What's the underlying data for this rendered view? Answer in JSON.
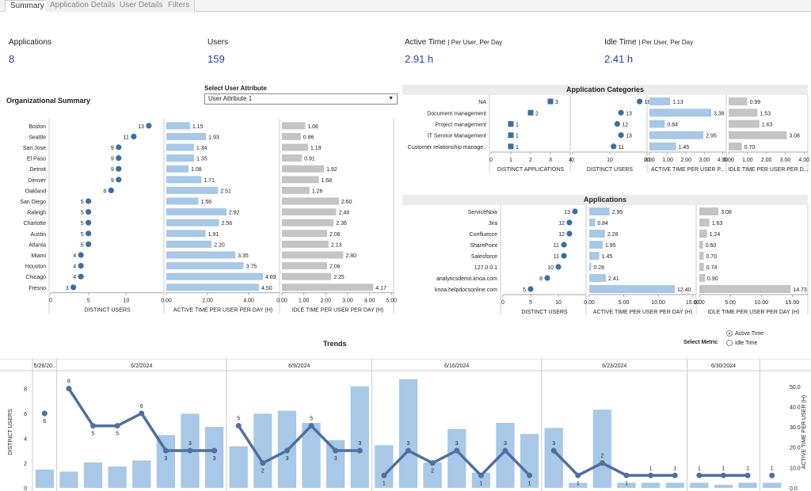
{
  "tabs": [
    {
      "label": "Summary",
      "active": true
    },
    {
      "label": "Application Details",
      "active": false
    },
    {
      "label": "User Details",
      "active": false
    },
    {
      "label": "Filters",
      "active": false
    }
  ],
  "kpis": {
    "applications": {
      "label": "Applications",
      "value": "8"
    },
    "users": {
      "label": "Users",
      "value": "159"
    },
    "active_time": {
      "label": "Active Time",
      "sub": "| Per User, Per Day",
      "value": "2.91 h"
    },
    "idle_time": {
      "label": "Idle Time",
      "sub": "| Per User, Per Day",
      "value": "2.41 h"
    }
  },
  "org_summary": {
    "title": "Organizational Summary"
  },
  "user_attribute": {
    "label": "Select User Attribute",
    "value": "User Attribute 1"
  },
  "app_categories": {
    "title": "Application Categories"
  },
  "applications": {
    "title": "Applications"
  },
  "trends": {
    "title": "Trends",
    "select_metric_label": "Select Metric",
    "options": [
      {
        "label": "Active Time",
        "selected": true
      },
      {
        "label": "Idle Time",
        "selected": false
      }
    ]
  },
  "colors": {
    "bar_blue": "#a7c8e6",
    "dot_blue": "#3a6ea5",
    "bar_gray": "#c4c4c4",
    "line_blue": "#4f6f9f",
    "kpi_blue": "#2a3fb4"
  },
  "chart_data": [
    {
      "id": "org",
      "type": "table",
      "categories": [
        "Boston",
        "Seattle",
        "San Jose",
        "El Paso",
        "Detroit",
        "Denver",
        "Oakland",
        "San Diego",
        "Raleigh",
        "Charlotte",
        "Austin",
        "Atlanta",
        "Miami",
        "Houston",
        "Chicago",
        "Fresno"
      ],
      "series": [
        {
          "name": "DISTINCT USERS",
          "values": [
            13,
            11,
            9,
            9,
            9,
            9,
            8,
            5,
            5,
            5,
            5,
            5,
            4,
            4,
            4,
            3
          ],
          "labels": [
            "13",
            "11",
            "9",
            "9",
            "9",
            "9",
            "8",
            "5",
            "5",
            "5",
            "5",
            "5",
            "4",
            "4",
            "4",
            "3"
          ],
          "xlim": [
            0,
            15
          ],
          "ticks": [
            "0",
            "5",
            "10"
          ]
        },
        {
          "name": "ACTIVE TIME PER USER PER DAY (H)",
          "values": [
            1.15,
            1.93,
            1.34,
            1.35,
            1.08,
            1.71,
            2.51,
            1.56,
            2.92,
            2.56,
            1.91,
            2.2,
            3.35,
            3.75,
            4.69,
            4.5
          ],
          "labels": [
            "1.15",
            "1.93",
            "1.34",
            "1.35",
            "1.08",
            "1.71",
            "2.51",
            "1.56",
            "2.92",
            "2.56",
            "1.91",
            "2.20",
            "3.35",
            "3.75",
            "4.69",
            "4.50"
          ],
          "xlim": [
            0,
            5.5
          ],
          "ticks": [
            "0.00",
            "2.00",
            "4.00"
          ]
        },
        {
          "name": "IDLE TIME PER USER PER DAY (H)",
          "values": [
            1.06,
            0.86,
            1.19,
            0.91,
            1.92,
            1.68,
            1.26,
            2.6,
            2.48,
            2.36,
            2.06,
            2.13,
            2.8,
            2.06,
            2.25,
            4.17
          ],
          "labels": [
            "1.06",
            "0.86",
            "1.19",
            "0.91",
            "1.92",
            "1.68",
            "1.26",
            "2.60",
            "2.48",
            "2.36",
            "2.06",
            "2.13",
            "2.80",
            "2.06",
            "2.25",
            "4.17"
          ],
          "xlim": [
            0,
            5.1
          ],
          "ticks": [
            "0.00",
            "1.00",
            "2.00",
            "3.00",
            "4.00",
            "5.00"
          ]
        }
      ]
    },
    {
      "id": "cat",
      "type": "table",
      "categories": [
        "NA",
        "Document management",
        "Project management",
        "IT Service Management",
        "Customer relationship manage.."
      ],
      "series": [
        {
          "name": "DISTINCT APPLICATIONS",
          "values": [
            3,
            2,
            1,
            1,
            1
          ],
          "labels": [
            "3",
            "2",
            "1",
            "1",
            "1"
          ],
          "xlim": [
            0,
            4
          ],
          "ticks": [
            "0",
            "1",
            "2",
            "3",
            "4"
          ]
        },
        {
          "name": "DISTINCT USERS",
          "values": [
            18,
            13,
            12,
            13,
            11
          ],
          "labels": [
            "18",
            "13",
            "12",
            "13",
            "11"
          ],
          "xlim": [
            0,
            20
          ],
          "ticks": [
            "0",
            "10",
            "20"
          ]
        },
        {
          "name": "ACTIVE TIME PER USER P...",
          "values": [
            1.13,
            3.38,
            0.84,
            2.95,
            1.45
          ],
          "labels": [
            "1.13",
            "3.38",
            "0.84",
            "2.95",
            "1.45"
          ],
          "xlim": [
            0,
            4.2
          ],
          "ticks": [
            "0.00",
            "1.00",
            "2.00",
            "3.00",
            "4.00"
          ]
        },
        {
          "name": "IDLE TIME PER USER PER D...",
          "values": [
            0.99,
            1.53,
            1.63,
            3.08,
            0.7
          ],
          "labels": [
            "0.99",
            "1.53",
            "1.63",
            "3.08",
            "0.70"
          ],
          "xlim": [
            0,
            4.2
          ],
          "ticks": [
            "0.00",
            "1.00",
            "2.00",
            "3.00",
            "4.00"
          ]
        }
      ]
    },
    {
      "id": "apps",
      "type": "table",
      "categories": [
        "ServiceNow",
        "Jira",
        "Confluence",
        "SharePoint",
        "Salesforce",
        "127.0.0.1",
        "analyticsdemo.knoa.com",
        "knoa.helpdocsonline.com"
      ],
      "series": [
        {
          "name": "DISTINCT USERS",
          "values": [
            13,
            12,
            12,
            11,
            11,
            10,
            8,
            5
          ],
          "labels": [
            "13",
            "12",
            "12",
            "11",
            "11",
            "10",
            "8",
            "5"
          ],
          "xlim": [
            0,
            15
          ],
          "ticks": [
            "0",
            "5",
            "10"
          ]
        },
        {
          "name": "ACTIVE TIME PER USER PER DAY (H)",
          "values": [
            2.95,
            0.84,
            2.28,
            1.95,
            1.45,
            0.28,
            2.41,
            12.4
          ],
          "labels": [
            "2.95",
            "0.84",
            "2.28",
            "1.95",
            "1.45",
            "0.28",
            "2.41",
            "12.40"
          ],
          "xlim": [
            0,
            15.5
          ],
          "ticks": [
            "0.00",
            "5.00",
            "10.00",
            "15.00"
          ]
        },
        {
          "name": "IDLE TIME PER USER PER DAY (H)",
          "values": [
            3.08,
            1.63,
            1.24,
            0.6,
            0.7,
            0.74,
            0.9,
            14.73
          ],
          "labels": [
            "3.08",
            "1.63",
            "1.24",
            "0.60",
            "0.70",
            "0.74",
            "0.90",
            "14.73"
          ],
          "xlim": [
            0,
            17.5
          ],
          "ticks": [
            "0.00",
            "5.00",
            "10.00",
            "15.00"
          ]
        }
      ]
    },
    {
      "id": "trends",
      "type": "bar",
      "week_headers": [
        "5/26/20..",
        "6/2/2024",
        "6/9/2024",
        "6/16/2024",
        "6/23/2024",
        "6/30/2024"
      ],
      "week_day_counts": [
        1,
        7,
        6,
        7,
        6,
        3
      ],
      "ylabel_left": "DISTINCT USERS",
      "ylabel_right": "ACTIVE TIME PER USER (H)",
      "ylim_left": [
        0,
        9
      ],
      "ylim_right": [
        0,
        55
      ],
      "left_ticks": [
        0,
        2,
        4,
        6,
        8
      ],
      "right_ticks": [
        "0.0",
        "10.0",
        "20.0",
        "30.0",
        "40.0",
        "50.0"
      ],
      "series": [
        {
          "name": "DISTINCT USERS",
          "type": "line",
          "values": [
            6,
            8,
            5,
            5,
            6,
            3,
            3,
            3,
            5,
            2,
            3,
            5,
            3,
            3,
            1,
            3,
            2,
            3,
            1,
            3,
            1,
            3,
            1,
            2,
            1,
            1,
            1,
            1,
            1,
            1,
            1
          ],
          "labels": [
            "6",
            "8",
            "5",
            "5",
            "6",
            "3",
            "3",
            "3",
            "5",
            "2",
            "3",
            "5",
            "3",
            "3",
            "1",
            "3",
            "2",
            "3",
            "1",
            "3",
            "1",
            "3",
            "1",
            "2",
            "1",
            "1",
            "1",
            "1",
            "1",
            "1",
            "1"
          ]
        },
        {
          "name": "ACTIVE TIME PER USER (H)",
          "type": "bar",
          "values": [
            9,
            8,
            12.5,
            10.5,
            13.5,
            26,
            36.5,
            30,
            20.5,
            36.5,
            38,
            32,
            23.5,
            50,
            21,
            53.5,
            12.5,
            29,
            7.5,
            32,
            26.5,
            29.5,
            2.5,
            38.5,
            2.5,
            2.5,
            2.5,
            2.5,
            1.5,
            2.5,
            2.5
          ]
        }
      ]
    }
  ]
}
